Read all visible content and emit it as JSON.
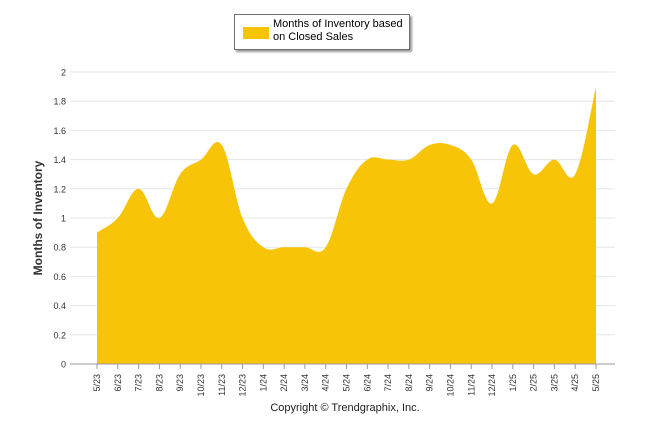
{
  "chart_data": {
    "type": "area",
    "ylabel": "Months of Inventory",
    "ylim": [
      0,
      2
    ],
    "yticks": [
      "0",
      "0.2",
      "0.4",
      "0.6",
      "0.8",
      "1",
      "1.2",
      "1.4",
      "1.6",
      "1.8",
      "2"
    ],
    "categories": [
      "5/23",
      "6/23",
      "7/23",
      "8/23",
      "9/23",
      "10/23",
      "11/23",
      "12/23",
      "1/24",
      "2/24",
      "3/24",
      "4/24",
      "5/24",
      "6/24",
      "7/24",
      "8/24",
      "9/24",
      "10/24",
      "11/24",
      "12/24",
      "1/25",
      "2/25",
      "3/25",
      "4/25",
      "5/25"
    ],
    "series": [
      {
        "name": "Months of Inventory based on Closed Sales",
        "color": "#F7C407",
        "values": [
          0.9,
          1.0,
          1.2,
          1.0,
          1.3,
          1.4,
          1.5,
          1.0,
          0.8,
          0.8,
          0.8,
          0.8,
          1.2,
          1.4,
          1.4,
          1.4,
          1.5,
          1.5,
          1.4,
          1.1,
          1.5,
          1.3,
          1.4,
          1.3,
          1.9
        ]
      }
    ],
    "grid": true,
    "legend": "top-center"
  },
  "legend": {
    "label": "Months of Inventory based on Closed Sales"
  },
  "footer": {
    "copyright": "Copyright © Trendgraphix, Inc."
  }
}
